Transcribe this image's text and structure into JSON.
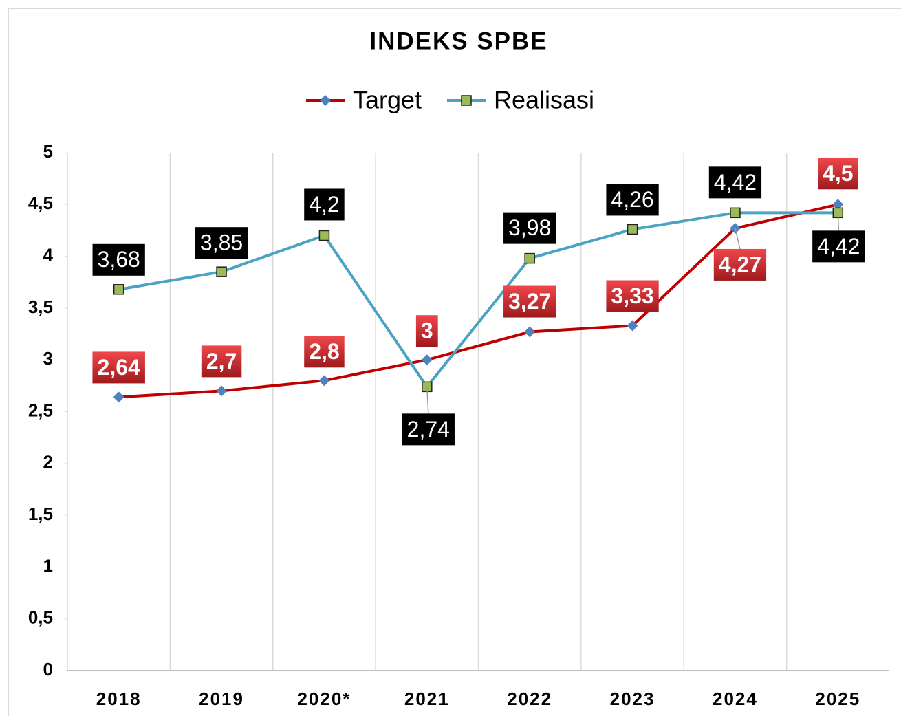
{
  "chart_data": {
    "type": "line",
    "title": "INDEKS SPBE",
    "categories": [
      "2018",
      "2019",
      "2020*",
      "2021",
      "2022",
      "2023",
      "2024",
      "2025"
    ],
    "series": [
      {
        "name": "Target",
        "color": "#c00000",
        "marker_color": "#4f81bd",
        "values": [
          2.64,
          2.7,
          2.8,
          3,
          3.27,
          3.33,
          4.27,
          4.5
        ],
        "value_labels": [
          "2,64",
          "2,7",
          "2,8",
          "3",
          "3,27",
          "3,33",
          "4,27",
          "4,5"
        ]
      },
      {
        "name": "Realisasi",
        "color": "#4ba3c3",
        "marker_color": "#9bbb59",
        "values": [
          3.68,
          3.85,
          4.2,
          2.74,
          3.98,
          4.26,
          4.42,
          4.42
        ],
        "value_labels": [
          "3,68",
          "3,85",
          "4,2",
          "2,74",
          "3,98",
          "4,26",
          "4,42",
          "4,42"
        ]
      }
    ],
    "ylim": [
      0,
      5
    ],
    "yticks": [
      0,
      {
        "value": 0.5,
        "label": "0,5"
      },
      1,
      {
        "value": 1.5,
        "label": "1,5"
      },
      2,
      {
        "value": 2.5,
        "label": "2,5"
      },
      3,
      {
        "value": 3.5,
        "label": "3,5"
      },
      4,
      {
        "value": 4.5,
        "label": "4,5"
      },
      5
    ],
    "legend": "top"
  }
}
